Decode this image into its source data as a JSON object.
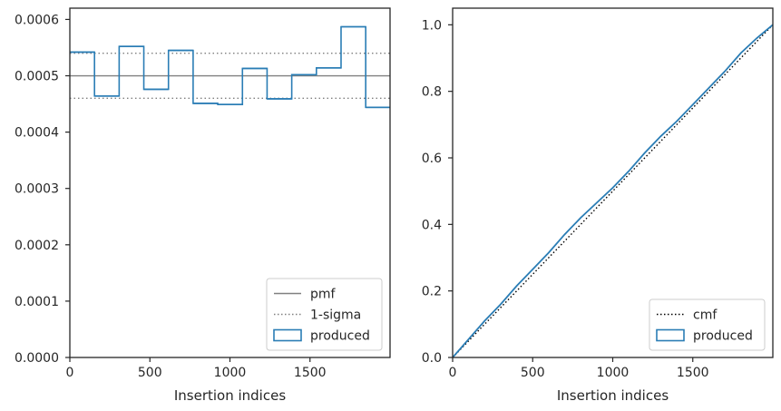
{
  "chart_data": [
    {
      "type": "step",
      "xlabel": "Insertion indices",
      "ylabel": "",
      "xlim": [
        0,
        2000
      ],
      "ylim": [
        0,
        0.00062
      ],
      "xticks": [
        0,
        500,
        1000,
        1500
      ],
      "xtick_labels": [
        "0",
        "500",
        "1000",
        "1500"
      ],
      "yticks": [
        0,
        0.0001,
        0.0002,
        0.0003,
        0.0004,
        0.0005,
        0.0006
      ],
      "ytick_labels": [
        "0.0000",
        "0.0001",
        "0.0002",
        "0.0003",
        "0.0004",
        "0.0005",
        "0.0006"
      ],
      "reference_lines": [
        {
          "name": "pmf",
          "y": 0.0005,
          "style": "solid",
          "color": "#808080"
        },
        {
          "name": "1-sigma",
          "y": 0.00054,
          "style": "dotted",
          "color": "#808080"
        },
        {
          "name": "1-sigma",
          "y": 0.00046,
          "style": "dotted",
          "color": "#808080"
        }
      ],
      "series": [
        {
          "name": "produced",
          "color": "#2a7db5",
          "bin_edges": [
            0,
            154,
            308,
            462,
            616,
            770,
            924,
            1078,
            1232,
            1386,
            1540,
            1694,
            1848,
            2000
          ],
          "values": [
            0.000542,
            0.000464,
            0.000552,
            0.000476,
            0.000545,
            0.000451,
            0.000449,
            0.000513,
            0.000459,
            0.000502,
            0.000514,
            0.000587,
            0.000444
          ]
        }
      ],
      "legend": {
        "position": "lower-right",
        "entries": [
          {
            "label": "pmf",
            "kind": "solid-line",
            "color": "#808080"
          },
          {
            "label": "1-sigma",
            "kind": "dotted-line",
            "color": "#808080"
          },
          {
            "label": "produced",
            "kind": "box",
            "color": "#2a7db5"
          }
        ]
      }
    },
    {
      "type": "line",
      "xlabel": "Insertion indices",
      "ylabel": "",
      "xlim": [
        0,
        2000
      ],
      "ylim": [
        0,
        1.05
      ],
      "xticks": [
        0,
        500,
        1000,
        1500
      ],
      "xtick_labels": [
        "0",
        "500",
        "1000",
        "1500"
      ],
      "yticks": [
        0,
        0.2,
        0.4,
        0.6,
        0.8,
        1.0
      ],
      "ytick_labels": [
        "0.0",
        "0.2",
        "0.4",
        "0.6",
        "0.8",
        "1.0"
      ],
      "series": [
        {
          "name": "cmf",
          "style": "dotted",
          "color": "#000000",
          "x": [
            0,
            2000
          ],
          "y": [
            0,
            1.0
          ]
        },
        {
          "name": "produced",
          "style": "solid",
          "color": "#2a7db5",
          "x": [
            0,
            100,
            200,
            300,
            400,
            500,
            600,
            700,
            800,
            900,
            1000,
            1100,
            1200,
            1300,
            1400,
            1500,
            1600,
            1700,
            1800,
            1900,
            2000
          ],
          "y": [
            0,
            0.055,
            0.11,
            0.16,
            0.215,
            0.265,
            0.315,
            0.37,
            0.42,
            0.465,
            0.51,
            0.56,
            0.615,
            0.665,
            0.71,
            0.76,
            0.81,
            0.86,
            0.915,
            0.96,
            1.0
          ]
        }
      ],
      "legend": {
        "position": "lower-right",
        "entries": [
          {
            "label": "cmf",
            "kind": "dotted-line",
            "color": "#000000"
          },
          {
            "label": "produced",
            "kind": "box",
            "color": "#2a7db5"
          }
        ]
      }
    }
  ]
}
